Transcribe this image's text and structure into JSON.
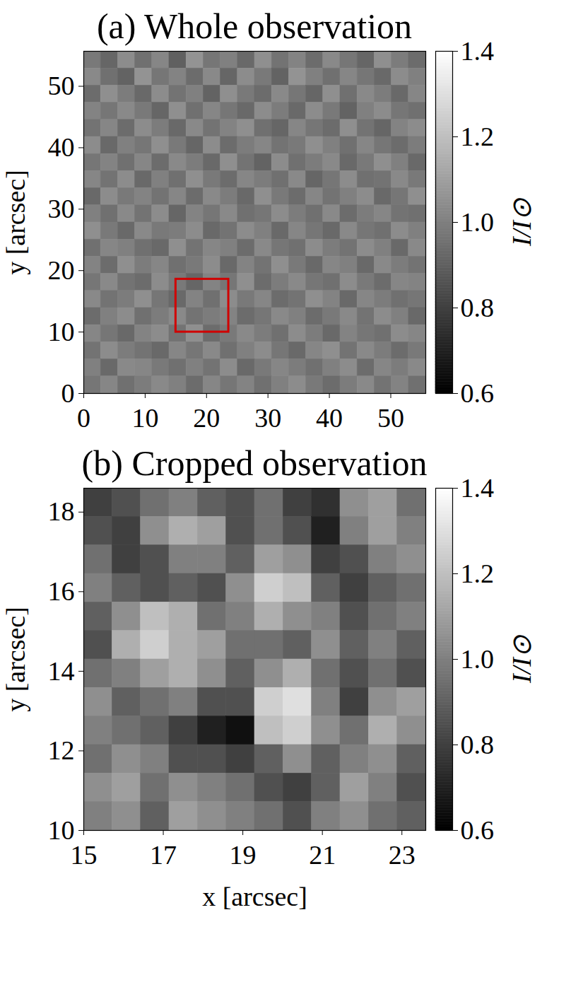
{
  "chart_data": [
    {
      "type": "heatmap",
      "title": "(a) Whole observation",
      "ylabel": "y [arcsec]",
      "xlim": [
        0,
        55.7
      ],
      "ylim": [
        0,
        55.7
      ],
      "xticks": [
        0,
        10,
        20,
        30,
        40,
        50
      ],
      "yticks": [
        0,
        10,
        20,
        30,
        40,
        50
      ],
      "colorbar": {
        "label": "I/I⊙",
        "range": [
          0.6,
          1.4
        ],
        "ticks": [
          0.6,
          0.8,
          {
            "value": 1,
            "label": "1.0"
          },
          1.2,
          1.4
        ]
      },
      "box": {
        "xlim": [
          15,
          23.6
        ],
        "ylim": [
          10,
          18.6
        ],
        "color": "#d00000"
      },
      "cells": [
        [
          0.98,
          0.92,
          1.04,
          0.95,
          1.02,
          0.9,
          1.06,
          0.97,
          1.0,
          0.93,
          1.05,
          0.96,
          1.01,
          0.94,
          1.03,
          0.97,
          0.92,
          1.05,
          0.99,
          0.94
        ],
        [
          1.03,
          0.95,
          0.91,
          1.06,
          0.97,
          1.01,
          0.94,
          1.03,
          0.92,
          1.04,
          0.98,
          0.91,
          1.06,
          1.0,
          0.95,
          1.02,
          0.97,
          0.93,
          1.04,
          1.0
        ],
        [
          0.94,
          1.05,
          0.99,
          0.93,
          1.04,
          0.96,
          1.0,
          0.91,
          1.05,
          0.98,
          0.94,
          1.03,
          0.97,
          0.92,
          1.05,
          0.95,
          1.03,
          0.99,
          0.93,
          1.02
        ],
        [
          1.01,
          0.97,
          1.03,
          0.98,
          0.92,
          1.05,
          0.95,
          1.02,
          0.97,
          0.93,
          1.04,
          0.99,
          0.93,
          1.04,
          0.98,
          0.91,
          1.0,
          1.04,
          0.97,
          0.95
        ],
        [
          0.96,
          1.02,
          0.94,
          1.04,
          0.99,
          0.93,
          1.03,
          0.96,
          1.01,
          1.05,
          0.95,
          0.92,
          1.02,
          0.97,
          0.94,
          1.05,
          0.96,
          0.92,
          1.01,
          1.04
        ],
        [
          1.04,
          0.93,
          1.0,
          0.97,
          1.05,
          0.98,
          0.92,
          1.04,
          0.94,
          0.99,
          1.02,
          0.96,
          0.98,
          1.05,
          1.0,
          0.95,
          1.02,
          0.97,
          0.94,
          0.99
        ],
        [
          0.97,
          1.01,
          0.95,
          1.02,
          0.94,
          1.03,
          0.99,
          0.93,
          1.05,
          0.96,
          0.91,
          1.04,
          0.95,
          0.99,
          1.03,
          0.93,
          0.98,
          1.05,
          1.0,
          0.93
        ],
        [
          1.02,
          0.96,
          1.04,
          0.93,
          1.0,
          0.95,
          1.05,
          0.98,
          0.94,
          1.02,
          0.99,
          0.95,
          1.03,
          0.92,
          0.97,
          1.04,
          0.95,
          0.96,
          1.03,
          0.98
        ],
        [
          0.93,
          1.04,
          0.98,
          1.01,
          0.96,
          1.02,
          0.94,
          1.03,
          0.99,
          0.93,
          1.05,
          0.98,
          0.94,
          1.02,
          0.96,
          1.0,
          1.04,
          0.93,
          0.97,
          1.05
        ],
        [
          1.0,
          0.95,
          1.03,
          0.96,
          1.04,
          0.92,
          1.01,
          0.97,
          1.03,
          0.95,
          0.97,
          1.04,
          0.99,
          0.95,
          1.03,
          0.94,
          0.99,
          1.02,
          0.96,
          0.95
        ],
        [
          1.05,
          0.98,
          0.93,
          1.03,
          0.98,
          0.99,
          1.04,
          0.93,
          0.96,
          1.04,
          1.0,
          0.93,
          1.02,
          0.97,
          0.93,
          1.03,
          0.97,
          0.95,
          1.04,
          1.0
        ],
        [
          0.95,
          1.02,
          1.0,
          0.95,
          0.93,
          1.05,
          0.96,
          1.02,
          1.0,
          0.94,
          1.03,
          0.97,
          0.95,
          1.04,
          0.99,
          0.96,
          1.04,
          1.0,
          0.93,
          1.03
        ],
        [
          1.01,
          0.94,
          1.05,
          0.99,
          1.02,
          0.95,
          0.98,
          1.04,
          0.93,
          1.01,
          0.96,
          1.05,
          0.98,
          0.93,
          1.02,
          1.0,
          0.93,
          1.03,
          0.99,
          0.96
        ],
        [
          0.97,
          1.03,
          0.96,
          0.94,
          1.04,
          0.98,
          0.92,
          1.01,
          0.97,
          1.05,
          0.94,
          0.99,
          1.03,
          0.97,
          0.95,
          1.04,
          0.98,
          0.94,
          1.02,
          1.01
        ],
        [
          1.03,
          0.96,
          0.99,
          1.05,
          0.97,
          0.93,
          1.01,
          0.95,
          1.04,
          0.98,
          1.02,
          0.94,
          0.96,
          1.05,
          1.01,
          0.93,
          1.02,
          0.99,
          0.95,
          0.97
        ],
        [
          0.94,
          1.0,
          1.04,
          0.95,
          0.99,
          1.03,
          0.96,
          0.99,
          1.01,
          0.94,
          0.97,
          1.03,
          1.0,
          0.94,
          0.98,
          1.03,
          0.96,
          1.04,
          1.0,
          0.93
        ],
        [
          1.02,
          0.97,
          0.93,
          1.01,
          1.04,
          0.96,
          1.05,
          0.94,
          0.98,
          1.03,
          0.99,
          0.95,
          1.04,
          0.99,
          0.93,
          1.01,
          0.97,
          0.95,
          1.04,
          1.02
        ],
        [
          0.96,
          1.04,
          0.99,
          0.96,
          0.93,
          1.02,
          0.97,
          1.03,
          0.95,
          1.0,
          1.04,
          0.97,
          0.93,
          1.02,
          1.05,
          0.96,
          1.03,
          0.99,
          0.94,
          0.98
        ],
        [
          1.0,
          0.93,
          1.03,
          1.02,
          0.98,
          0.95,
          1.0,
          0.96,
          1.04,
          0.93,
          0.98,
          1.02,
          0.99,
          0.95,
          1.0,
          1.04,
          0.94,
          1.02,
          0.99,
          1.03
        ],
        [
          0.97,
          1.02,
          0.95,
          0.99,
          1.03,
          1.0,
          0.94,
          1.02,
          0.97,
          1.01,
          0.95,
          1.0,
          1.04,
          0.98,
          0.94,
          0.99,
          1.03,
          0.96,
          1.01,
          0.95
        ]
      ]
    },
    {
      "type": "heatmap",
      "title": "(b) Cropped observation",
      "xlabel": "x [arcsec]",
      "ylabel": "y [arcsec]",
      "xlim": [
        15,
        23.6
      ],
      "ylim": [
        10,
        18.6
      ],
      "xticks": [
        15,
        17,
        19,
        21,
        23
      ],
      "yticks": [
        10,
        12,
        14,
        16,
        18
      ],
      "colorbar": {
        "label": "I/I⊙",
        "range": [
          0.6,
          1.4
        ],
        "ticks": [
          0.6,
          0.8,
          {
            "value": 1,
            "label": "1.0"
          },
          1.2,
          1.4
        ]
      },
      "cells": [
        [
          0.8,
          0.85,
          0.95,
          1.0,
          0.9,
          0.85,
          0.95,
          0.8,
          0.75,
          1.05,
          1.1,
          0.95
        ],
        [
          0.85,
          0.8,
          1.05,
          1.15,
          1.1,
          0.85,
          0.95,
          0.85,
          0.7,
          1.0,
          1.1,
          1.0
        ],
        [
          0.95,
          0.8,
          0.85,
          1.0,
          1.0,
          0.9,
          1.1,
          1.05,
          0.8,
          0.85,
          1.0,
          1.05
        ],
        [
          1.0,
          0.9,
          0.85,
          0.9,
          0.85,
          1.05,
          1.25,
          1.2,
          0.9,
          0.8,
          0.9,
          0.95
        ],
        [
          0.9,
          1.05,
          1.2,
          1.15,
          0.95,
          1.0,
          1.15,
          1.05,
          1.0,
          0.85,
          0.95,
          1.0
        ],
        [
          0.85,
          1.15,
          1.25,
          1.15,
          1.1,
          0.95,
          0.95,
          0.9,
          1.05,
          0.9,
          1.0,
          0.9
        ],
        [
          0.95,
          1.0,
          1.1,
          1.15,
          1.05,
          0.9,
          1.05,
          1.15,
          0.95,
          0.85,
          0.95,
          0.85
        ],
        [
          1.05,
          0.9,
          0.95,
          1.0,
          0.85,
          0.85,
          1.25,
          1.3,
          1.0,
          0.8,
          1.05,
          1.1
        ],
        [
          1.0,
          0.95,
          0.9,
          0.8,
          0.7,
          0.65,
          1.2,
          1.25,
          1.05,
          0.95,
          1.15,
          1.05
        ],
        [
          0.95,
          1.05,
          1.0,
          0.85,
          0.85,
          0.8,
          0.9,
          1.05,
          0.9,
          1.0,
          1.05,
          0.9
        ],
        [
          1.05,
          1.1,
          0.95,
          1.05,
          1.0,
          0.95,
          0.85,
          0.8,
          0.9,
          1.1,
          1.0,
          0.85
        ],
        [
          1.0,
          1.05,
          0.9,
          1.1,
          1.05,
          1.0,
          0.95,
          0.85,
          1.0,
          1.05,
          0.95,
          0.9
        ]
      ]
    }
  ]
}
